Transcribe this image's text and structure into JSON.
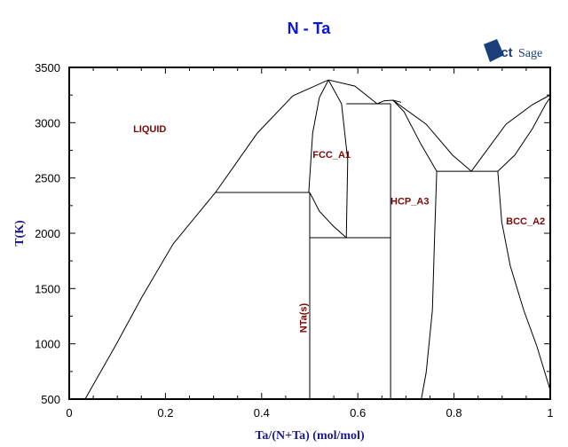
{
  "chart_data": {
    "type": "line",
    "title": "N - Ta",
    "xlabel": "Ta/(N+Ta) (mol/mol)",
    "ylabel": "T(K)",
    "xlim": [
      0,
      1
    ],
    "ylim": [
      500,
      3500
    ],
    "xticks": [
      0,
      0.2,
      0.4,
      0.6,
      0.8,
      1
    ],
    "xtick_labels": [
      "0",
      "0.2",
      "0.4",
      "0.6",
      "0.8",
      "1"
    ],
    "yticks": [
      500,
      1000,
      1500,
      2000,
      2500,
      3000,
      3500
    ],
    "ytick_labels": [
      "500",
      "1000",
      "1500",
      "2000",
      "2500",
      "3000",
      "3500"
    ],
    "grid": false,
    "colors": {
      "title": "#0a14e6",
      "phase_labels": "#7a0a0a",
      "axis_label": "#1a1a8c",
      "lines": "#000000",
      "logo": "#1b3f7a"
    },
    "logo": "FactSage",
    "phase_labels": [
      {
        "text": "LIQUID",
        "x": 0.133,
        "y": 2914,
        "rotate": false
      },
      {
        "text": "FCC_A1",
        "x": 0.506,
        "y": 2681,
        "rotate": false
      },
      {
        "text": "HCP_A3",
        "x": 0.668,
        "y": 2260,
        "rotate": false
      },
      {
        "text": "BCC_A2",
        "x": 0.908,
        "y": 2080,
        "rotate": false
      },
      {
        "text": "NTa(s)",
        "x": 0.494,
        "y": 1100,
        "rotate": true
      }
    ],
    "series": [
      {
        "points": [
          [
            0.033,
            500
          ],
          [
            0.096,
            981
          ],
          [
            0.151,
            1422
          ],
          [
            0.216,
            1904
          ],
          [
            0.304,
            2369
          ],
          [
            0.391,
            2906
          ],
          [
            0.465,
            3243
          ],
          [
            0.539,
            3387
          ],
          [
            0.594,
            3331
          ],
          [
            0.64,
            3171
          ]
        ]
      },
      {
        "points": [
          [
            0.64,
            3171
          ],
          [
            0.655,
            3198
          ],
          [
            0.673,
            3203
          ],
          [
            0.69,
            3185
          ]
        ]
      },
      {
        "points": [
          [
            0.673,
            3203
          ],
          [
            0.742,
            2986
          ],
          [
            0.797,
            2706
          ],
          [
            0.836,
            2561
          ]
        ]
      },
      {
        "points": [
          [
            0.673,
            3203
          ],
          [
            0.696,
            3100
          ],
          [
            0.732,
            2800
          ],
          [
            0.764,
            2561
          ]
        ]
      },
      {
        "points": [
          [
            0.836,
            2561
          ],
          [
            0.908,
            2986
          ],
          [
            0.963,
            3163
          ],
          [
            1,
            3251
          ]
        ]
      },
      {
        "points": [
          [
            0.891,
            2561
          ],
          [
            0.926,
            2706
          ],
          [
            0.963,
            2946
          ],
          [
            0.991,
            3171
          ],
          [
            1,
            3227
          ]
        ]
      },
      {
        "points": [
          [
            0.539,
            3387
          ],
          [
            0.52,
            3227
          ],
          [
            0.506,
            2906
          ],
          [
            0.5,
            2505
          ],
          [
            0.498,
            2369
          ]
        ]
      },
      {
        "points": [
          [
            0.539,
            3387
          ],
          [
            0.566,
            3171
          ],
          [
            0.579,
            2665
          ],
          [
            0.576,
            1960
          ]
        ]
      },
      {
        "points": [
          [
            0.5,
            2369
          ],
          [
            0.52,
            2200
          ],
          [
            0.55,
            2060
          ],
          [
            0.576,
            1960
          ]
        ]
      },
      {
        "points": [
          [
            0.5,
            2369
          ],
          [
            0.5,
            500
          ]
        ]
      },
      {
        "points": [
          [
            0.304,
            2369
          ],
          [
            0.5,
            2369
          ]
        ]
      },
      {
        "points": [
          [
            0.5,
            1960
          ],
          [
            0.668,
            1960
          ]
        ]
      },
      {
        "points": [
          [
            0.576,
            3171
          ],
          [
            0.668,
            3171
          ]
        ]
      },
      {
        "points": [
          [
            0.668,
            3171
          ],
          [
            0.668,
            500
          ]
        ]
      },
      {
        "points": [
          [
            0.764,
            2561
          ],
          [
            0.76,
            2024
          ],
          [
            0.755,
            1302
          ],
          [
            0.742,
            741
          ],
          [
            0.732,
            500
          ]
        ]
      },
      {
        "points": [
          [
            0.764,
            2561
          ],
          [
            0.891,
            2561
          ]
        ]
      },
      {
        "points": [
          [
            0.891,
            2561
          ],
          [
            0.899,
            2104
          ],
          [
            0.917,
            1703
          ],
          [
            0.945,
            1302
          ],
          [
            0.972,
            981
          ],
          [
            1,
            580
          ]
        ]
      }
    ]
  }
}
